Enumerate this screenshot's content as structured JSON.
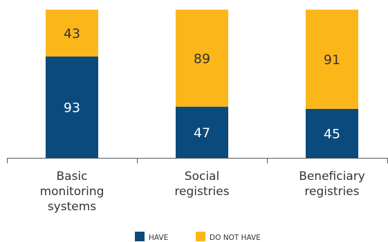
{
  "chart_data": {
    "type": "bar",
    "stacked": true,
    "categories": [
      [
        "Basic",
        "monitoring",
        "systems"
      ],
      [
        "Social",
        "registries"
      ],
      [
        "Beneficiary",
        "registries"
      ]
    ],
    "series": [
      {
        "name": "HAVE",
        "values": [
          93,
          47,
          45
        ],
        "color": "#0b4a7c",
        "label_color": "#ffffff"
      },
      {
        "name": "DO NOT HAVE",
        "values": [
          43,
          89,
          91
        ],
        "color": "#fbb619",
        "label_color": "#333333"
      }
    ],
    "ylim": [
      0,
      136
    ],
    "grid": false,
    "legend_position": "bottom-center",
    "title": "",
    "xlabel": "",
    "ylabel": ""
  }
}
